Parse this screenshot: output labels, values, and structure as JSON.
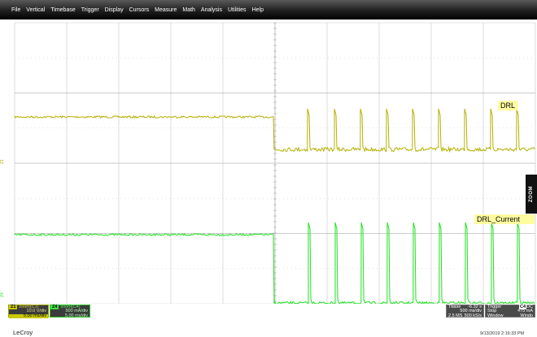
{
  "menu": [
    "File",
    "Vertical",
    "Timebase",
    "Trigger",
    "Display",
    "Cursors",
    "Measure",
    "Math",
    "Analysis",
    "Utilities",
    "Help"
  ],
  "colors": {
    "trace_drl": "#b4b000",
    "trace_current": "#1ee21e",
    "grid": "#c8c8c8"
  },
  "traces": {
    "drl": {
      "label": "DRL",
      "axis_marker": "Z1"
    },
    "current": {
      "label": "DRL_Current",
      "axis_marker": "Z4"
    }
  },
  "zoom_tab": "ZOOM",
  "z1": {
    "id": "Z1",
    "name": "zoom(C1)",
    "vdiv": "10.0 V/div",
    "tdiv": "5.00 ms/div"
  },
  "z4": {
    "id": "Z4",
    "name": "zoom(C4)",
    "vdiv": "500 mA/div",
    "tdiv": "5.00 ms/div"
  },
  "timebase": {
    "title": "Tbase",
    "delay": "-6.32 s",
    "tdiv": "500 ms/div",
    "samples": "2.5 MS",
    "rate": "500 kS/s"
  },
  "trigger": {
    "title": "Trigger",
    "source": "C4",
    "coupling": "DC",
    "mode": "Stop",
    "level": "475 mA",
    "type": "Window",
    "type2": "Windo"
  },
  "brand": "LeCroy",
  "timestamp": "9/13/2019 2:16:33 PM"
}
